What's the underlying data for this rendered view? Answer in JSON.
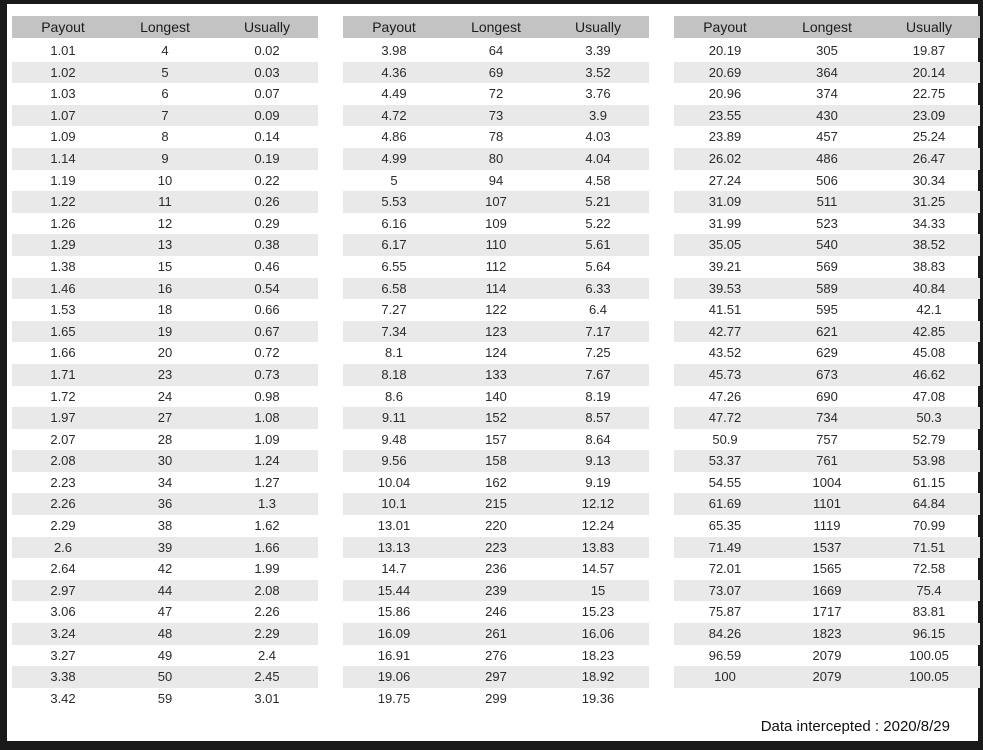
{
  "columns": [
    "Payout",
    "Longest",
    "Usually"
  ],
  "colors": {
    "frame_border": "#1a1a1a",
    "header_bg": "#c3c3c3",
    "stripe_bg": "#e9e9e9",
    "cell_text": "#2b2b2b",
    "header_text": "#1c1c1c"
  },
  "tables": [
    {
      "rows": [
        [
          "1.01",
          "4",
          "0.02"
        ],
        [
          "1.02",
          "5",
          "0.03"
        ],
        [
          "1.03",
          "6",
          "0.07"
        ],
        [
          "1.07",
          "7",
          "0.09"
        ],
        [
          "1.09",
          "8",
          "0.14"
        ],
        [
          "1.14",
          "9",
          "0.19"
        ],
        [
          "1.19",
          "10",
          "0.22"
        ],
        [
          "1.22",
          "11",
          "0.26"
        ],
        [
          "1.26",
          "12",
          "0.29"
        ],
        [
          "1.29",
          "13",
          "0.38"
        ],
        [
          "1.38",
          "15",
          "0.46"
        ],
        [
          "1.46",
          "16",
          "0.54"
        ],
        [
          "1.53",
          "18",
          "0.66"
        ],
        [
          "1.65",
          "19",
          "0.67"
        ],
        [
          "1.66",
          "20",
          "0.72"
        ],
        [
          "1.71",
          "23",
          "0.73"
        ],
        [
          "1.72",
          "24",
          "0.98"
        ],
        [
          "1.97",
          "27",
          "1.08"
        ],
        [
          "2.07",
          "28",
          "1.09"
        ],
        [
          "2.08",
          "30",
          "1.24"
        ],
        [
          "2.23",
          "34",
          "1.27"
        ],
        [
          "2.26",
          "36",
          "1.3"
        ],
        [
          "2.29",
          "38",
          "1.62"
        ],
        [
          "2.6",
          "39",
          "1.66"
        ],
        [
          "2.64",
          "42",
          "1.99"
        ],
        [
          "2.97",
          "44",
          "2.08"
        ],
        [
          "3.06",
          "47",
          "2.26"
        ],
        [
          "3.24",
          "48",
          "2.29"
        ],
        [
          "3.27",
          "49",
          "2.4"
        ],
        [
          "3.38",
          "50",
          "2.45"
        ],
        [
          "3.42",
          "59",
          "3.01"
        ]
      ]
    },
    {
      "rows": [
        [
          "3.98",
          "64",
          "3.39"
        ],
        [
          "4.36",
          "69",
          "3.52"
        ],
        [
          "4.49",
          "72",
          "3.76"
        ],
        [
          "4.72",
          "73",
          "3.9"
        ],
        [
          "4.86",
          "78",
          "4.03"
        ],
        [
          "4.99",
          "80",
          "4.04"
        ],
        [
          "5",
          "94",
          "4.58"
        ],
        [
          "5.53",
          "107",
          "5.21"
        ],
        [
          "6.16",
          "109",
          "5.22"
        ],
        [
          "6.17",
          "110",
          "5.61"
        ],
        [
          "6.55",
          "112",
          "5.64"
        ],
        [
          "6.58",
          "114",
          "6.33"
        ],
        [
          "7.27",
          "122",
          "6.4"
        ],
        [
          "7.34",
          "123",
          "7.17"
        ],
        [
          "8.1",
          "124",
          "7.25"
        ],
        [
          "8.18",
          "133",
          "7.67"
        ],
        [
          "8.6",
          "140",
          "8.19"
        ],
        [
          "9.11",
          "152",
          "8.57"
        ],
        [
          "9.48",
          "157",
          "8.64"
        ],
        [
          "9.56",
          "158",
          "9.13"
        ],
        [
          "10.04",
          "162",
          "9.19"
        ],
        [
          "10.1",
          "215",
          "12.12"
        ],
        [
          "13.01",
          "220",
          "12.24"
        ],
        [
          "13.13",
          "223",
          "13.83"
        ],
        [
          "14.7",
          "236",
          "14.57"
        ],
        [
          "15.44",
          "239",
          "15"
        ],
        [
          "15.86",
          "246",
          "15.23"
        ],
        [
          "16.09",
          "261",
          "16.06"
        ],
        [
          "16.91",
          "276",
          "18.23"
        ],
        [
          "19.06",
          "297",
          "18.92"
        ],
        [
          "19.75",
          "299",
          "19.36"
        ]
      ]
    },
    {
      "rows": [
        [
          "20.19",
          "305",
          "19.87"
        ],
        [
          "20.69",
          "364",
          "20.14"
        ],
        [
          "20.96",
          "374",
          "22.75"
        ],
        [
          "23.55",
          "430",
          "23.09"
        ],
        [
          "23.89",
          "457",
          "25.24"
        ],
        [
          "26.02",
          "486",
          "26.47"
        ],
        [
          "27.24",
          "506",
          "30.34"
        ],
        [
          "31.09",
          "511",
          "31.25"
        ],
        [
          "31.99",
          "523",
          "34.33"
        ],
        [
          "35.05",
          "540",
          "38.52"
        ],
        [
          "39.21",
          "569",
          "38.83"
        ],
        [
          "39.53",
          "589",
          "40.84"
        ],
        [
          "41.51",
          "595",
          "42.1"
        ],
        [
          "42.77",
          "621",
          "42.85"
        ],
        [
          "43.52",
          "629",
          "45.08"
        ],
        [
          "45.73",
          "673",
          "46.62"
        ],
        [
          "47.26",
          "690",
          "47.08"
        ],
        [
          "47.72",
          "734",
          "50.3"
        ],
        [
          "50.9",
          "757",
          "52.79"
        ],
        [
          "53.37",
          "761",
          "53.98"
        ],
        [
          "54.55",
          "1004",
          "61.15"
        ],
        [
          "61.69",
          "1101",
          "64.84"
        ],
        [
          "65.35",
          "1119",
          "70.99"
        ],
        [
          "71.49",
          "1537",
          "71.51"
        ],
        [
          "72.01",
          "1565",
          "72.58"
        ],
        [
          "73.07",
          "1669",
          "75.4"
        ],
        [
          "75.87",
          "1717",
          "83.81"
        ],
        [
          "84.26",
          "1823",
          "96.15"
        ],
        [
          "96.59",
          "2079",
          "100.05"
        ],
        [
          "100",
          "2079",
          "100.05"
        ]
      ]
    }
  ],
  "footer": {
    "text": "Data intercepted : 2020/8/29"
  }
}
